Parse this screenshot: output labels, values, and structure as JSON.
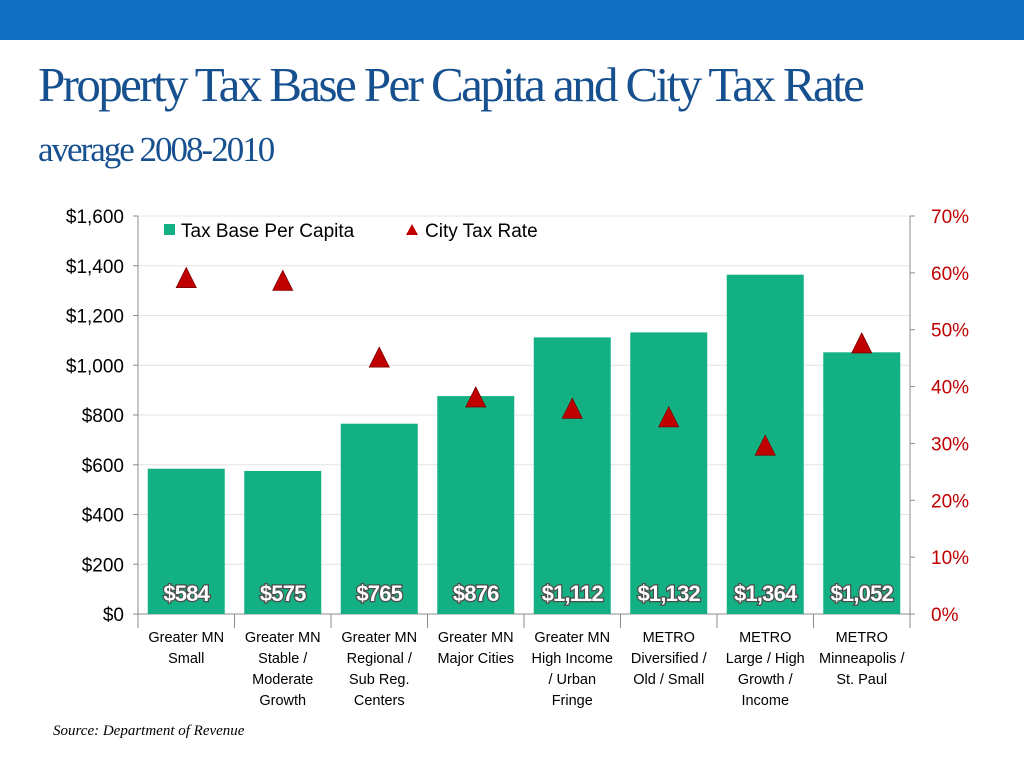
{
  "slide": {
    "title": "Property Tax Base Per Capita and City Tax Rate",
    "subtitle": "average 2008-2010",
    "source": "Source: Department of Revenue"
  },
  "colors": {
    "header_bar": "#1170c1",
    "title": "#17508f",
    "bar": "#12b083",
    "marker": "#c00000",
    "right_axis_text": "#c00000"
  },
  "chart_data": {
    "type": "bar",
    "title": "",
    "xlabel": "",
    "ylabel": "",
    "categories": [
      "Greater MN Small",
      "Greater MN Stable / Moderate Growth",
      "Greater MN Regional / Sub Reg. Centers",
      "Greater MN Major Cities",
      "Greater MN High Income / Urban Fringe",
      "METRO Diversified / Old / Small",
      "METRO Large / High Growth / Income",
      "METRO Minneapolis / St. Paul"
    ],
    "category_label_lines": [
      [
        "Greater MN",
        "Small"
      ],
      [
        "Greater MN",
        "Stable /",
        "Moderate",
        "Growth"
      ],
      [
        "Greater MN",
        "Regional /",
        "Sub Reg.",
        "Centers"
      ],
      [
        "Greater MN",
        "Major Cities"
      ],
      [
        "Greater MN",
        "High Income",
        "/ Urban",
        "Fringe"
      ],
      [
        "METRO",
        "Diversified /",
        "Old / Small"
      ],
      [
        "METRO",
        "Large / High",
        "Growth /",
        "Income"
      ],
      [
        "METRO",
        "Minneapolis /",
        "St. Paul"
      ]
    ],
    "series": [
      {
        "name": "Tax Base Per Capita",
        "type": "bar",
        "axis": "left",
        "values": [
          584,
          575,
          765,
          876,
          1112,
          1132,
          1364,
          1052
        ],
        "data_labels": [
          "$584",
          "$575",
          "$765",
          "$876",
          "$1,112",
          "$1,132",
          "$1,364",
          "$1,052"
        ]
      },
      {
        "name": "City Tax Rate",
        "type": "scatter",
        "marker": "triangle",
        "axis": "right",
        "values": [
          59,
          58.5,
          45,
          38,
          36,
          34.5,
          29.5,
          47.5
        ]
      }
    ],
    "y_left": {
      "min": 0,
      "max": 1600,
      "step": 200,
      "tick_labels": [
        "$0",
        "$200",
        "$400",
        "$600",
        "$800",
        "$1,000",
        "$1,200",
        "$1,400",
        "$1,600"
      ]
    },
    "y_right": {
      "min": 0,
      "max": 70,
      "step": 10,
      "tick_labels": [
        "0%",
        "10%",
        "20%",
        "30%",
        "40%",
        "50%",
        "60%",
        "70%"
      ]
    },
    "grid": true,
    "legend": "top-left"
  }
}
